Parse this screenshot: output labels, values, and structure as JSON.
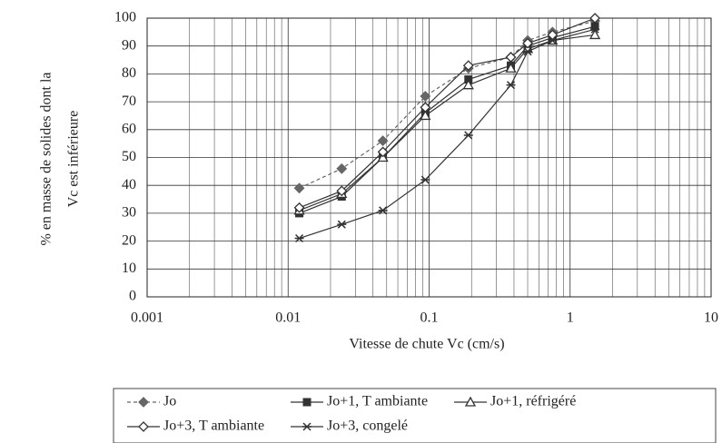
{
  "chart_data": {
    "type": "line",
    "xlabel": "Vitesse de chute Vc (cm/s)",
    "ylabel": [
      "% en masse de solides dont la",
      "Vc est inférieure"
    ],
    "xscale": "log",
    "x": [
      0.012,
      0.024,
      0.047,
      0.094,
      0.19,
      0.38,
      0.5,
      0.75,
      1.5
    ],
    "xlim": [
      0.001,
      10
    ],
    "xticks": [
      0.001,
      0.01,
      0.1,
      1,
      10
    ],
    "xminorticks": [
      0.002,
      0.003,
      0.004,
      0.005,
      0.006,
      0.007,
      0.008,
      0.009,
      0.02,
      0.03,
      0.04,
      0.05,
      0.06,
      0.07,
      0.08,
      0.09,
      0.2,
      0.3,
      0.4,
      0.5,
      0.6,
      0.7,
      0.8,
      0.9,
      2,
      3,
      4,
      5,
      6,
      7,
      8,
      9
    ],
    "ylim": [
      0,
      100
    ],
    "yticks": [
      0,
      10,
      20,
      30,
      40,
      50,
      60,
      70,
      80,
      90,
      100
    ],
    "grid": true,
    "legend": "bottom",
    "series": [
      {
        "name": "Jo",
        "color": "#666666",
        "marker": "diamond-filled",
        "dash": true,
        "values": [
          39,
          46,
          56,
          72,
          82,
          86,
          92,
          95,
          99
        ]
      },
      {
        "name": "Jo+1, T ambiante",
        "color": "#333333",
        "marker": "square",
        "values": [
          30,
          36,
          50,
          66,
          78,
          83,
          90,
          93,
          97
        ]
      },
      {
        "name": "Jo+1, réfrigéré",
        "color": "#333333",
        "marker": "triangle",
        "values": [
          31,
          37,
          50,
          65,
          76,
          82,
          89,
          92,
          94
        ]
      },
      {
        "name": "Jo+3, T ambiante",
        "color": "#333333",
        "marker": "diamond",
        "values": [
          32,
          38,
          52,
          68,
          83,
          86,
          91,
          94,
          100
        ]
      },
      {
        "name": "Jo+3, congelé",
        "color": "#333333",
        "marker": "star",
        "values": [
          21,
          26,
          31,
          42,
          58,
          76,
          88,
          92,
          96
        ]
      }
    ]
  }
}
